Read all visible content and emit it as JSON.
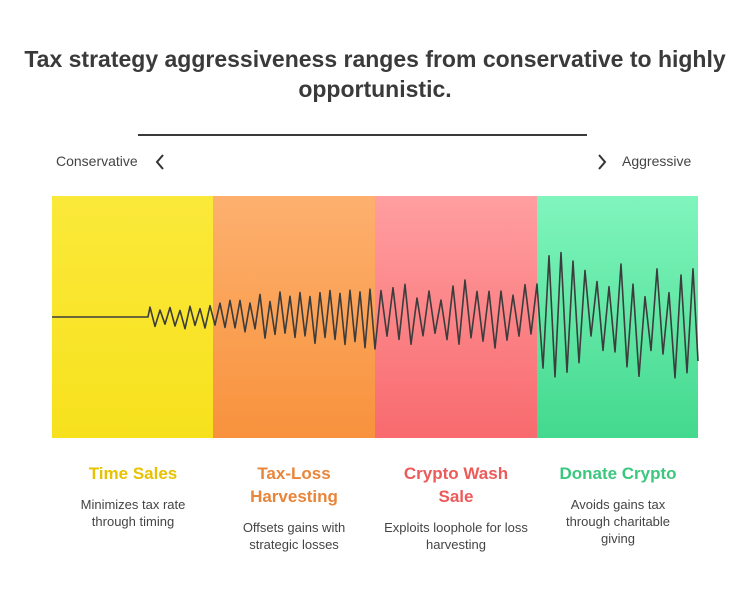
{
  "title": "Tax strategy aggressiveness ranges from conservative to highly opportunistic.",
  "scale": {
    "left_label": "Conservative",
    "right_label": "Aggressive"
  },
  "colors": {
    "time_sales": "#e6c200",
    "tax_loss": "#e8853a",
    "crypto_wash": "#ec5a5a",
    "donate": "#3cc77e",
    "wave": "#3c3c3c"
  },
  "strategies": [
    {
      "title": "Time Sales",
      "description": "Minimizes tax rate through timing"
    },
    {
      "title": "Tax-Loss Harvesting",
      "description": "Offsets gains with strategic losses"
    },
    {
      "title": "Crypto Wash Sale",
      "description": "Exploits loophole for loss harvesting"
    },
    {
      "title": "Donate Crypto",
      "description": "Avoids gains tax through charitable giving"
    }
  ]
}
